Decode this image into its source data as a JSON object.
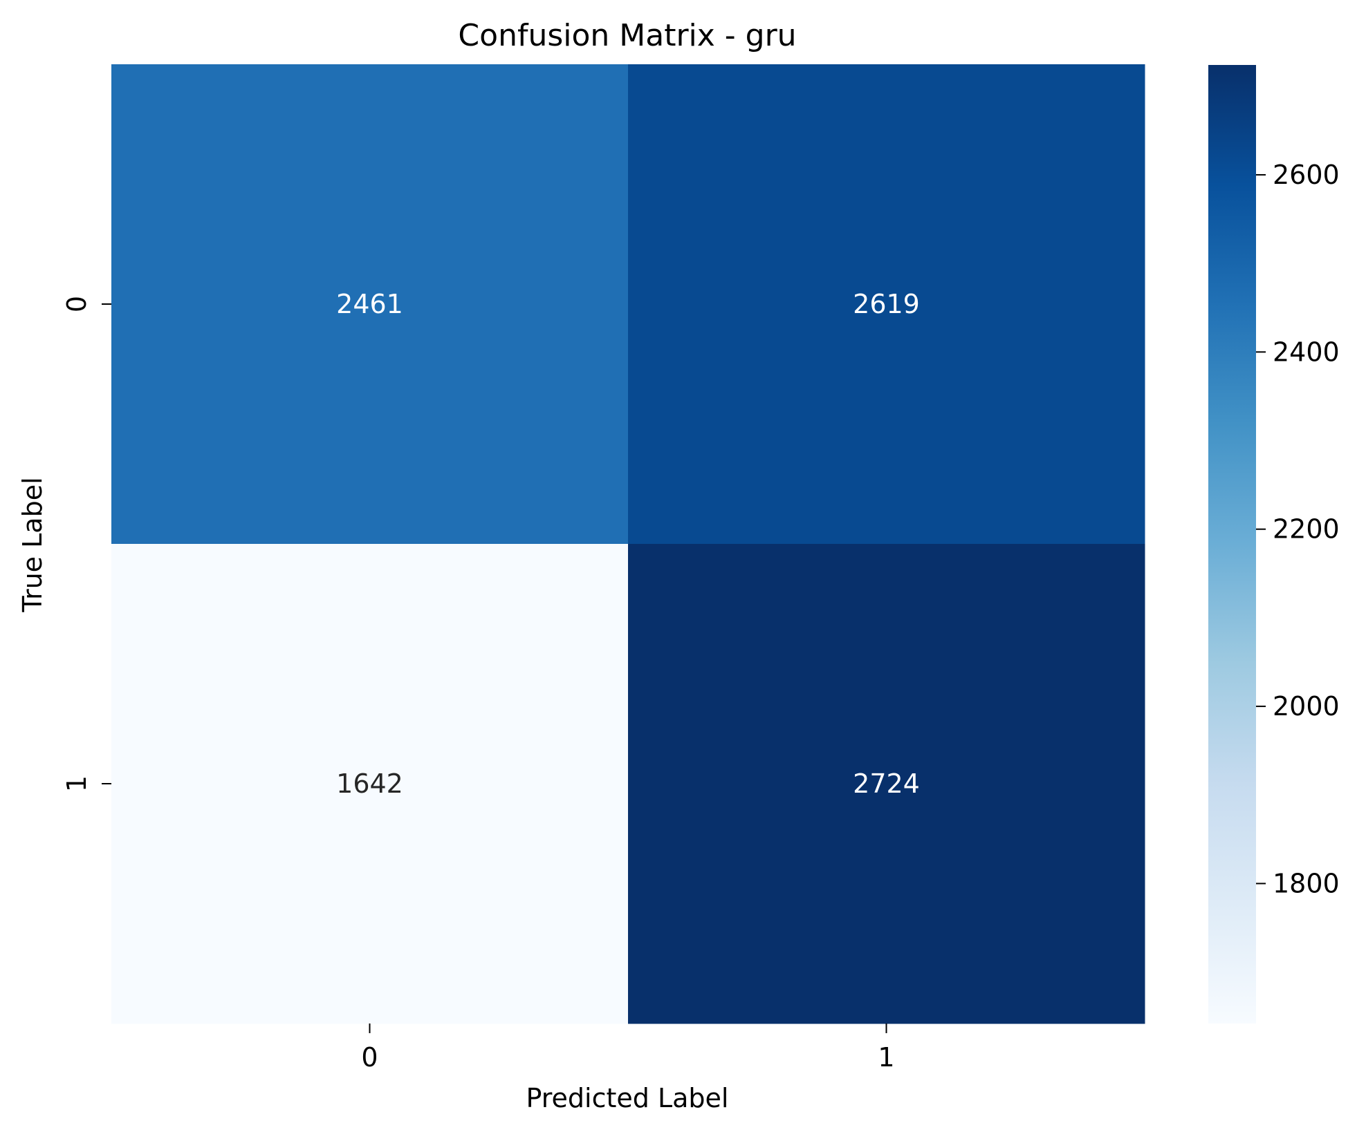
{
  "chart_data": {
    "type": "heatmap",
    "title": "Confusion Matrix - gru",
    "xlabel": "Predicted Label",
    "ylabel": "True Label",
    "x_categories": [
      "0",
      "1"
    ],
    "y_categories": [
      "0",
      "1"
    ],
    "values": [
      [
        2461,
        2619
      ],
      [
        1642,
        2724
      ]
    ],
    "colormap": "Blues",
    "colorbar": {
      "range": [
        1642,
        2724
      ],
      "ticks": [
        1800,
        2000,
        2200,
        2400,
        2600
      ],
      "tick_labels": [
        "1800",
        "2000",
        "2200",
        "2400",
        "2600"
      ]
    },
    "grid": false,
    "legend": "none"
  }
}
